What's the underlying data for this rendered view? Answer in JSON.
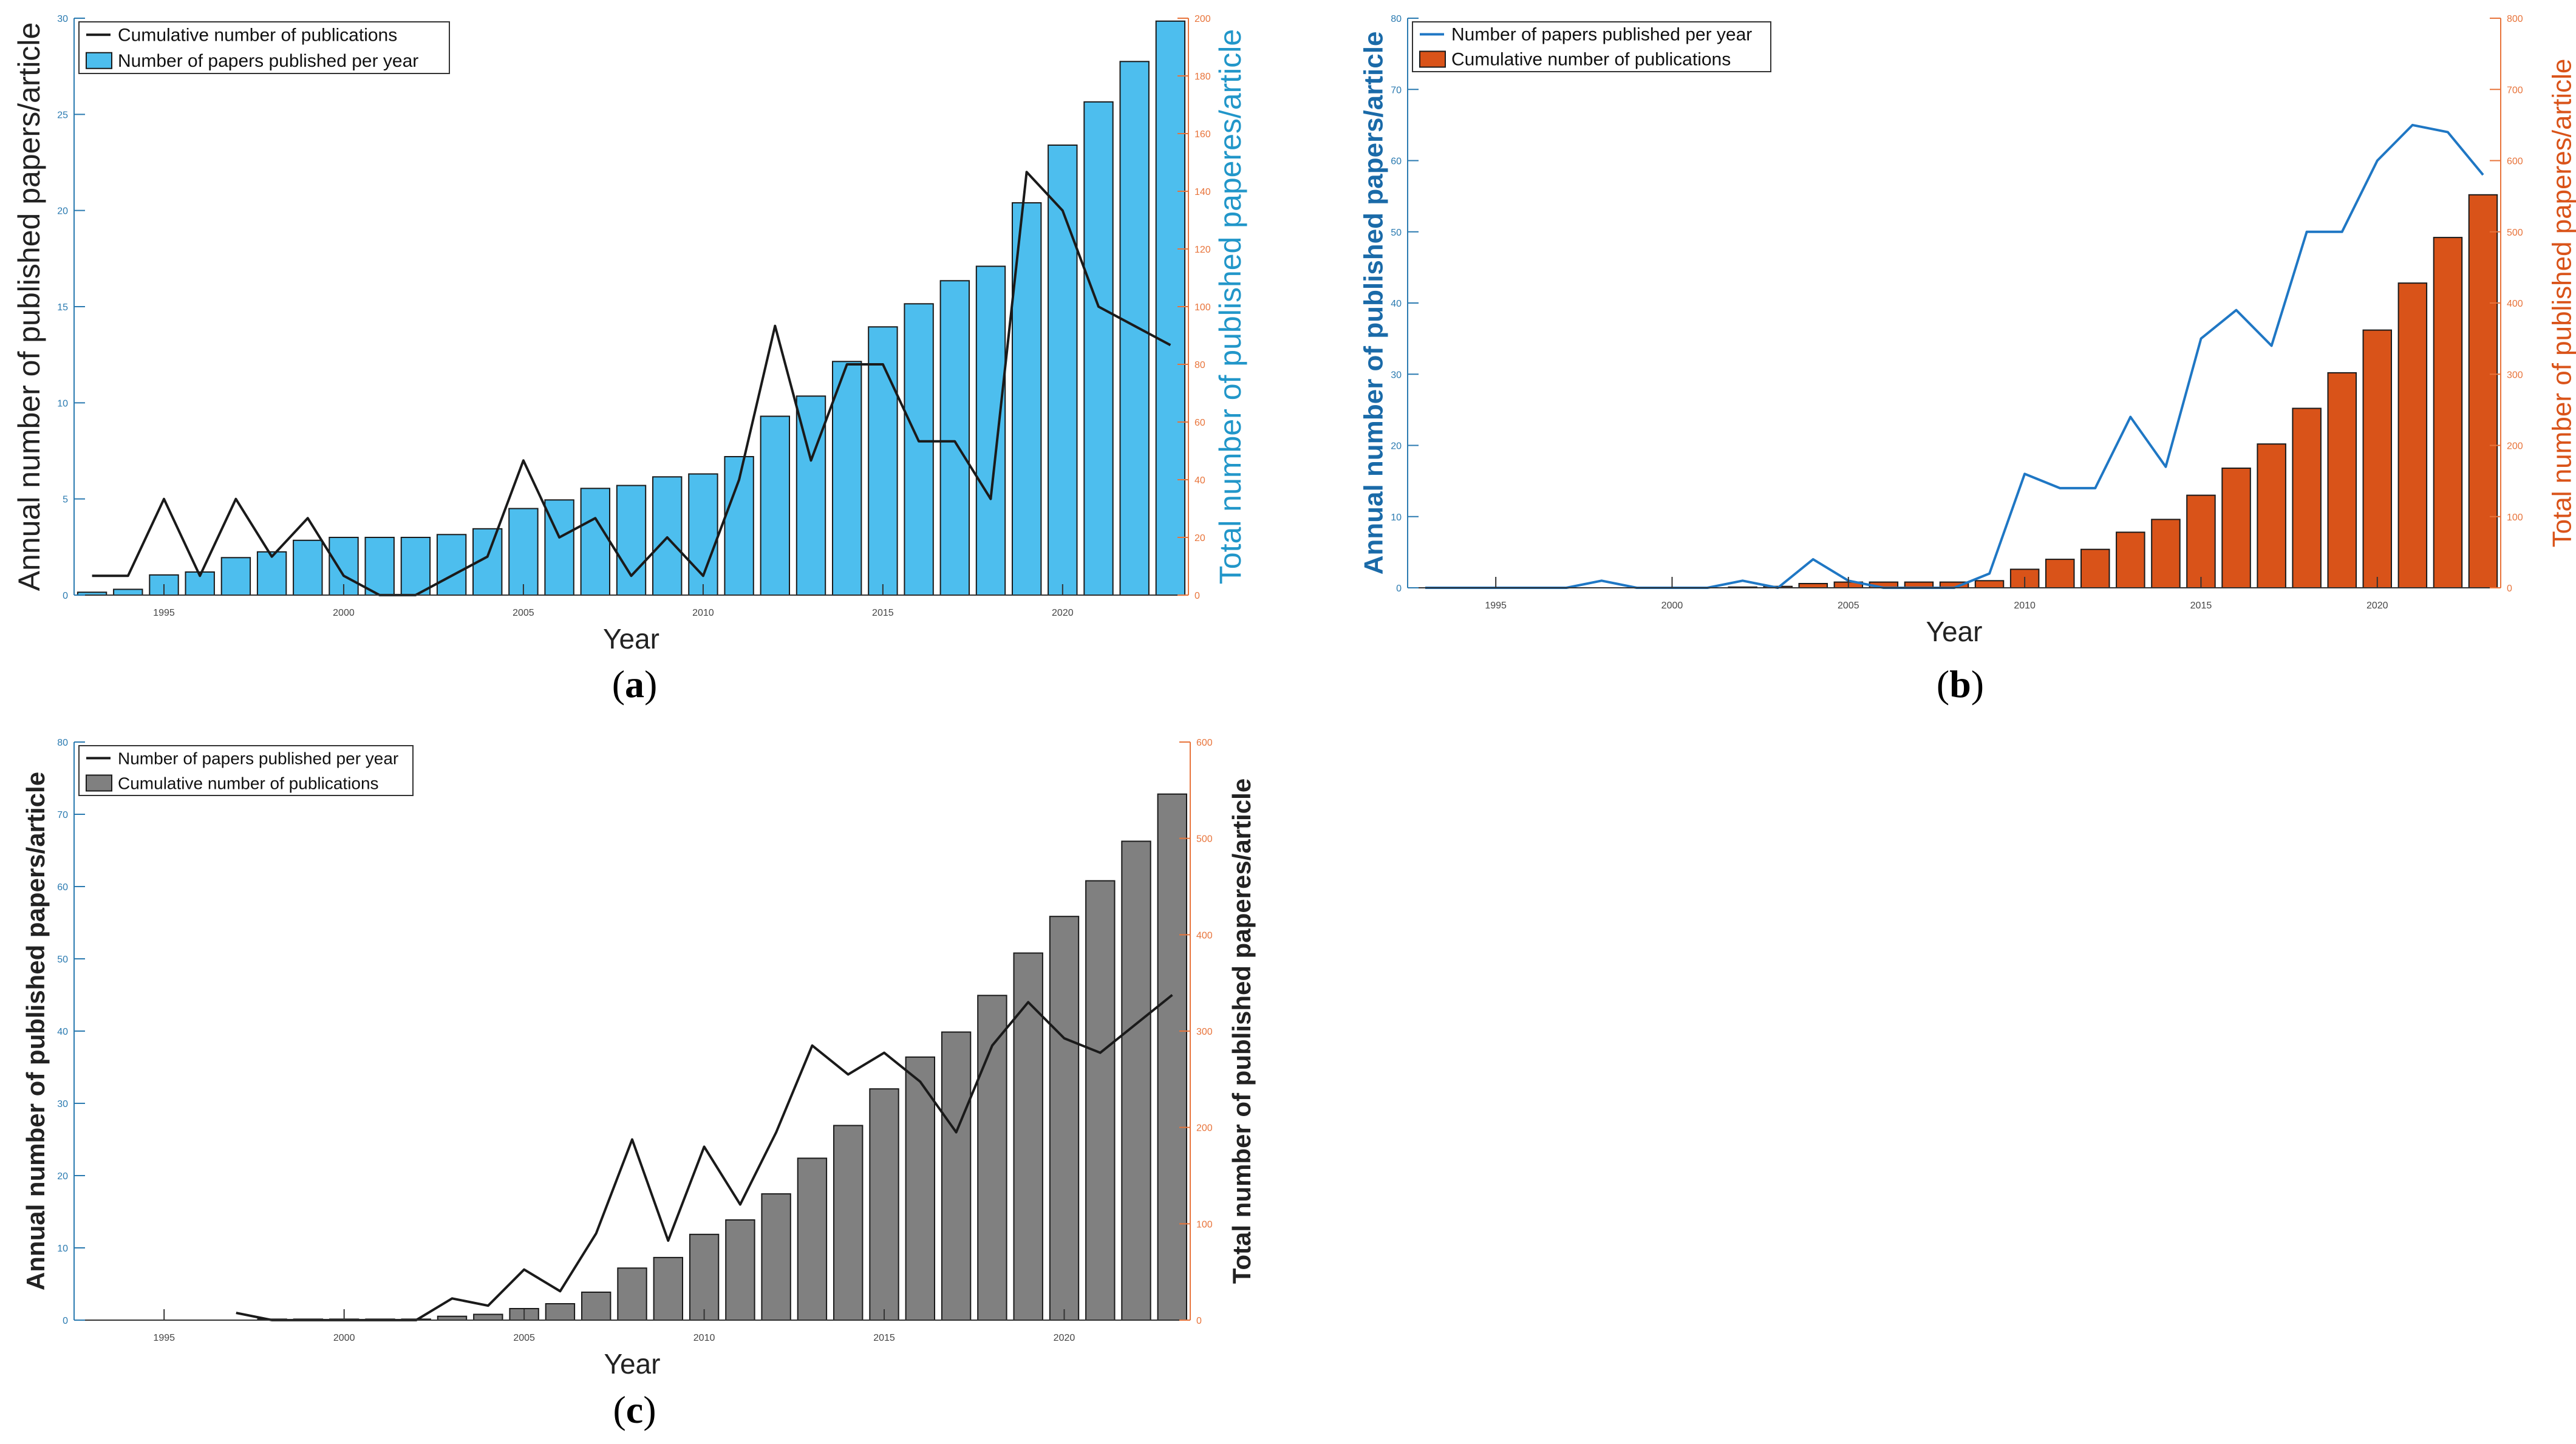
{
  "figure": {
    "captions": [
      {
        "open": "(",
        "letter": "a",
        "close": ")"
      },
      {
        "open": "(",
        "letter": "b",
        "close": ")"
      },
      {
        "open": "(",
        "letter": "c",
        "close": ")"
      }
    ]
  },
  "chart_data": [
    {
      "panel": "a",
      "type": "bar",
      "xlabel": "Year",
      "ylabel_left": "Annual number of published papers/article",
      "ylabel_right": "Total number of published paperes/article",
      "x_ticks": [
        1995,
        2000,
        2005,
        2010,
        2015,
        2020
      ],
      "xlim": [
        1993,
        2023
      ],
      "ylim_left": [
        0,
        30
      ],
      "ylim_right": [
        0,
        200
      ],
      "left_ticks": [
        0,
        5,
        10,
        15,
        20,
        25,
        30
      ],
      "right_ticks": [
        0,
        20,
        40,
        60,
        80,
        100,
        120,
        140,
        160,
        180,
        200
      ],
      "legend_position": "top-left",
      "legend": [
        "Cumulative number of publications",
        "Number of papers published per year"
      ],
      "bar_color": "#4DBEEE",
      "line_color": "#1a1a1a",
      "left_tick_color": "#2a7ab0",
      "right_tick_color": "#e8743b",
      "left_label_color": "#222222",
      "right_label_color": "#2196c9",
      "years": [
        1993,
        1994,
        1995,
        1996,
        1997,
        1998,
        1999,
        2000,
        2001,
        2002,
        2003,
        2004,
        2005,
        2006,
        2007,
        2008,
        2009,
        2010,
        2011,
        2012,
        2013,
        2014,
        2015,
        2016,
        2017,
        2018,
        2019,
        2020,
        2021,
        2022,
        2023
      ],
      "bar_axis": "right",
      "bar_values": [
        1,
        2,
        7,
        8,
        13,
        15,
        19,
        20,
        20,
        20,
        21,
        23,
        30,
        33,
        37,
        38,
        41,
        42,
        48,
        62,
        69,
        81,
        93,
        101,
        109,
        114,
        136,
        156,
        171,
        185,
        199
      ],
      "line_axis": "left",
      "line_values": [
        1,
        1,
        5,
        1,
        5,
        2,
        4,
        1,
        0,
        0,
        1,
        2,
        7,
        3,
        4,
        1,
        3,
        1,
        6,
        14,
        7,
        12,
        12,
        8,
        8,
        5,
        22,
        20,
        15,
        14,
        13
      ]
    },
    {
      "panel": "b",
      "type": "bar",
      "xlabel": "Year",
      "ylabel_left": "Annual number of published papers/article",
      "ylabel_right": "Total number of published paperes/article",
      "x_ticks": [
        1995,
        2000,
        2005,
        2010,
        2015,
        2020
      ],
      "xlim": [
        1993,
        2023
      ],
      "ylim_left": [
        0,
        80
      ],
      "ylim_right": [
        0,
        800
      ],
      "left_ticks": [
        0,
        10,
        20,
        30,
        40,
        50,
        60,
        70,
        80
      ],
      "right_ticks": [
        0,
        100,
        200,
        300,
        400,
        500,
        600,
        700,
        800
      ],
      "legend_position": "top-left",
      "legend": [
        "Number of papers published per year",
        "Cumulative number of publications"
      ],
      "bar_color": "#D95319",
      "line_color": "#1f77c4",
      "left_tick_color": "#2a7ab0",
      "right_tick_color": "#e8743b",
      "left_label_color": "#1a6aa8",
      "right_label_color": "#D95319",
      "years": [
        1993,
        1994,
        1995,
        1996,
        1997,
        1998,
        1999,
        2000,
        2001,
        2002,
        2003,
        2004,
        2005,
        2006,
        2007,
        2008,
        2009,
        2010,
        2011,
        2012,
        2013,
        2014,
        2015,
        2016,
        2017,
        2018,
        2019,
        2020,
        2021,
        2022,
        2023
      ],
      "bar_axis": "right",
      "bar_values": [
        0,
        0,
        0,
        0,
        0,
        0,
        0,
        0,
        0,
        1,
        2,
        6,
        8,
        8,
        8,
        8,
        10,
        26,
        40,
        54,
        78,
        96,
        130,
        168,
        202,
        252,
        302,
        362,
        428,
        492,
        552
      ],
      "line_axis": "left",
      "line_values": [
        0,
        0,
        0,
        0,
        0,
        1,
        0,
        0,
        0,
        1,
        0,
        4,
        1,
        0,
        0,
        0,
        2,
        16,
        14,
        14,
        24,
        17,
        35,
        39,
        34,
        50,
        50,
        60,
        65,
        64,
        58
      ]
    },
    {
      "panel": "c",
      "type": "bar",
      "xlabel": "Year",
      "ylabel_left": "Annual number of published papers/article",
      "ylabel_right": "Total number of published paperes/article",
      "x_ticks": [
        1995,
        2000,
        2005,
        2010,
        2015,
        2020
      ],
      "xlim": [
        1993,
        2023
      ],
      "ylim_left": [
        0,
        80
      ],
      "ylim_right": [
        0,
        600
      ],
      "left_ticks": [
        0,
        10,
        20,
        30,
        40,
        50,
        60,
        70,
        80
      ],
      "right_ticks": [
        0,
        100,
        200,
        300,
        400,
        500,
        600
      ],
      "legend_position": "top-left",
      "legend": [
        "Number of papers published per year",
        "Cumulative number of publications"
      ],
      "bar_color": "#808080",
      "line_color": "#1a1a1a",
      "left_tick_color": "#2a7ab0",
      "right_tick_color": "#e8743b",
      "left_label_color": "#222222",
      "right_label_color": "#222222",
      "years": [
        1993,
        1994,
        1995,
        1996,
        1997,
        1998,
        1999,
        2000,
        2001,
        2002,
        2003,
        2004,
        2005,
        2006,
        2007,
        2008,
        2009,
        2010,
        2011,
        2012,
        2013,
        2014,
        2015,
        2016,
        2017,
        2018,
        2019,
        2020,
        2021,
        2022,
        2023
      ],
      "bar_axis": "right",
      "bar_values": [
        0,
        0,
        0,
        0,
        0,
        1,
        1,
        1,
        1,
        1,
        4,
        6,
        12,
        17,
        29,
        54,
        65,
        89,
        104,
        131,
        168,
        202,
        240,
        273,
        299,
        337,
        381,
        419,
        456,
        497,
        546
      ],
      "line_axis": "left",
      "line_values": [
        null,
        null,
        null,
        null,
        1,
        0,
        0,
        0,
        0,
        0,
        3,
        2,
        7,
        4,
        12,
        25,
        11,
        24,
        16,
        26,
        38,
        34,
        37,
        33,
        26,
        38,
        44,
        39,
        37,
        41,
        45
      ]
    }
  ]
}
